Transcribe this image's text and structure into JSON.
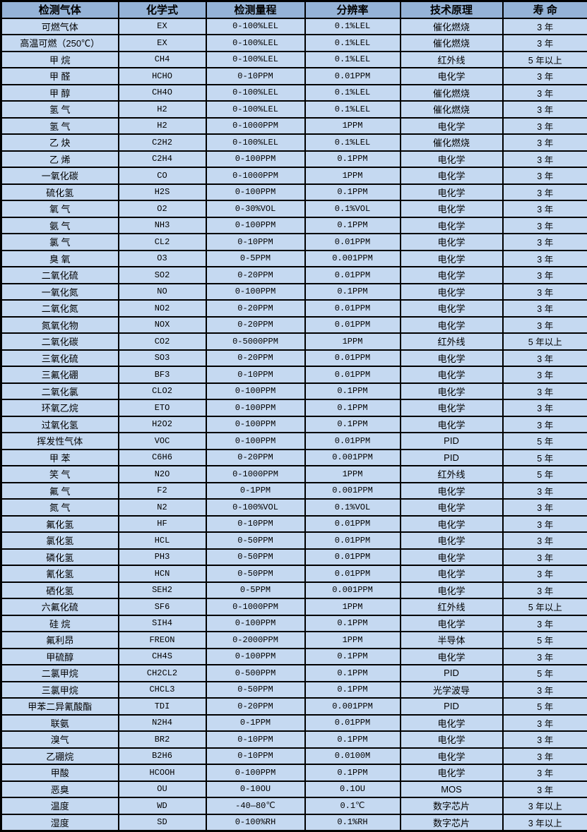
{
  "table": {
    "columns": [
      "检测气体",
      "化学式",
      "检测量程",
      "分辨率",
      "技术原理",
      "寿 命"
    ],
    "rows": [
      [
        "可燃气体",
        "EX",
        "0-100%LEL",
        "0.1%LEL",
        "催化燃烧",
        "3 年"
      ],
      [
        "高温可燃（250℃）",
        "EX",
        "0-100%LEL",
        "0.1%LEL",
        "催化燃烧",
        "3 年"
      ],
      [
        "甲 烷",
        "CH4",
        "0-100%LEL",
        "0.1%LEL",
        "红外线",
        "5 年以上"
      ],
      [
        "甲 醛",
        "HCHO",
        "0-10PPM",
        "0.01PPM",
        "电化学",
        "3 年"
      ],
      [
        "甲 醇",
        "CH4O",
        "0-100%LEL",
        "0.1%LEL",
        "催化燃烧",
        "3 年"
      ],
      [
        "氢 气",
        "H2",
        "0-100%LEL",
        "0.1%LEL",
        "催化燃烧",
        "3 年"
      ],
      [
        "氢 气",
        "H2",
        "0-1000PPM",
        "1PPM",
        "电化学",
        "3 年"
      ],
      [
        "乙 炔",
        "C2H2",
        "0-100%LEL",
        "0.1%LEL",
        "催化燃烧",
        "3 年"
      ],
      [
        "乙 烯",
        "C2H4",
        "0-100PPM",
        "0.1PPM",
        "电化学",
        "3 年"
      ],
      [
        "一氧化碳",
        "CO",
        "0-1000PPM",
        "1PPM",
        "电化学",
        "3 年"
      ],
      [
        "硫化氢",
        "H2S",
        "0-100PPM",
        "0.1PPM",
        "电化学",
        "3 年"
      ],
      [
        "氧 气",
        "O2",
        "0-30%VOL",
        "0.1%VOL",
        "电化学",
        "3 年"
      ],
      [
        "氨 气",
        "NH3",
        "0-100PPM",
        "0.1PPM",
        "电化学",
        "3 年"
      ],
      [
        "氯 气",
        "CL2",
        "0-10PPM",
        "0.01PPM",
        "电化学",
        "3 年"
      ],
      [
        "臭 氧",
        "O3",
        "0-5PPM",
        "0.001PPM",
        "电化学",
        "3 年"
      ],
      [
        "二氧化硫",
        "SO2",
        "0-20PPM",
        "0.01PPM",
        "电化学",
        "3 年"
      ],
      [
        "一氧化氮",
        "NO",
        "0-100PPM",
        "0.1PPM",
        "电化学",
        "3 年"
      ],
      [
        "二氧化氮",
        "NO2",
        "0-20PPM",
        "0.01PPM",
        "电化学",
        "3 年"
      ],
      [
        "氮氧化物",
        "NOX",
        "0-20PPM",
        "0.01PPM",
        "电化学",
        "3 年"
      ],
      [
        "二氧化碳",
        "CO2",
        "0-5000PPM",
        "1PPM",
        "红外线",
        "5 年以上"
      ],
      [
        "三氧化硫",
        "SO3",
        "0-20PPM",
        "0.01PPM",
        "电化学",
        "3 年"
      ],
      [
        "三氟化硼",
        "BF3",
        "0-10PPM",
        "0.01PPM",
        "电化学",
        "3 年"
      ],
      [
        "二氧化氯",
        "CLO2",
        "0-100PPM",
        "0.1PPM",
        "电化学",
        "3 年"
      ],
      [
        "环氧乙烷",
        "ETO",
        "0-100PPM",
        "0.1PPM",
        "电化学",
        "3 年"
      ],
      [
        "过氧化氢",
        "H2O2",
        "0-100PPM",
        "0.1PPM",
        "电化学",
        "3 年"
      ],
      [
        "挥发性气体",
        "VOC",
        "0-100PPM",
        "0.01PPM",
        "PID",
        "5 年"
      ],
      [
        "甲 苯",
        "C6H6",
        "0-20PPM",
        "0.001PPM",
        "PID",
        "5 年"
      ],
      [
        "笑 气",
        "N2O",
        "0-1000PPM",
        "1PPM",
        "红外线",
        "5 年"
      ],
      [
        "氟 气",
        "F2",
        "0-1PPM",
        "0.001PPM",
        "电化学",
        "3 年"
      ],
      [
        "氮 气",
        "N2",
        "0-100%VOL",
        "0.1%VOL",
        "电化学",
        "3 年"
      ],
      [
        "氟化氢",
        "HF",
        "0-10PPM",
        "0.01PPM",
        "电化学",
        "3 年"
      ],
      [
        "氯化氢",
        "HCL",
        "0-50PPM",
        "0.01PPM",
        "电化学",
        "3 年"
      ],
      [
        "磷化氢",
        "PH3",
        "0-50PPM",
        "0.01PPM",
        "电化学",
        "3 年"
      ],
      [
        "氰化氢",
        "HCN",
        "0-50PPM",
        "0.01PPM",
        "电化学",
        "3 年"
      ],
      [
        "硒化氢",
        "SEH2",
        "0-5PPM",
        "0.001PPM",
        "电化学",
        "3 年"
      ],
      [
        "六氟化硫",
        "SF6",
        "0-1000PPM",
        "1PPM",
        "红外线",
        "5 年以上"
      ],
      [
        "硅 烷",
        "SIH4",
        "0-100PPM",
        "0.1PPM",
        "电化学",
        "3 年"
      ],
      [
        "氟利昂",
        "FREON",
        "0-2000PPM",
        "1PPM",
        "半导体",
        "5 年"
      ],
      [
        "甲硫醇",
        "CH4S",
        "0-100PPM",
        "0.1PPM",
        "电化学",
        "3 年"
      ],
      [
        "二氯甲烷",
        "CH2CL2",
        "0-500PPM",
        "0.1PPM",
        "PID",
        "5 年"
      ],
      [
        "三氯甲烷",
        "CHCL3",
        "0-50PPM",
        "0.1PPM",
        "光学波导",
        "3 年"
      ],
      [
        "甲苯二异氰酸酯",
        "TDI",
        "0-20PPM",
        "0.001PPM",
        "PID",
        "5 年"
      ],
      [
        "联氨",
        "N2H4",
        "0-1PPM",
        "0.01PPM",
        "电化学",
        "3 年"
      ],
      [
        "溴气",
        "BR2",
        "0-10PPM",
        "0.1PPM",
        "电化学",
        "3 年"
      ],
      [
        "乙硼烷",
        "B2H6",
        "0-10PPM",
        "0.0100M",
        "电化学",
        "3 年"
      ],
      [
        "甲酸",
        "HCOOH",
        "0-100PPM",
        "0.1PPM",
        "电化学",
        "3 年"
      ],
      [
        "恶臭",
        "OU",
        "0-10OU",
        "0.1OU",
        "MOS",
        "3 年"
      ],
      [
        "温度",
        "WD",
        "-40—80℃",
        "0.1℃",
        "数字芯片",
        "3 年以上"
      ],
      [
        "湿度",
        "SD",
        "0-100%RH",
        "0.1%RH",
        "数字芯片",
        "3 年以上"
      ]
    ]
  },
  "colors": {
    "header_bg": "#95B3D7",
    "row_bg": "#C5D9F1",
    "border": "#000000",
    "text": "#000000"
  }
}
